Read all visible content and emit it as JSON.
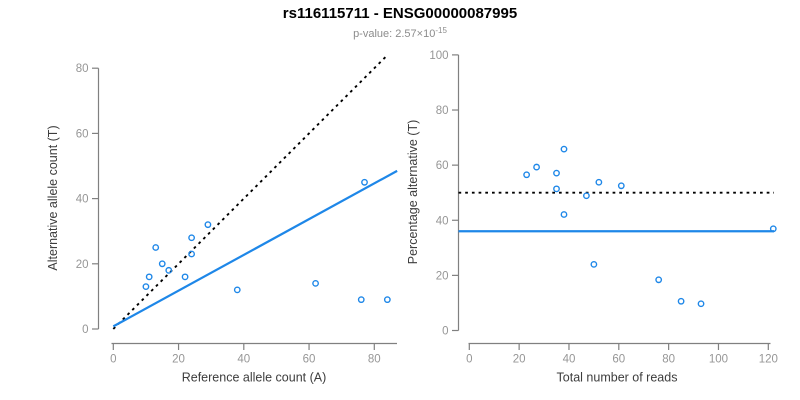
{
  "header": {
    "title": "rs116115711 - ENSG00000087995",
    "pvalue_prefix": "p-value: 2.57",
    "pvalue_times": "×",
    "pvalue_base": "10",
    "pvalue_exponent": "-15"
  },
  "colors": {
    "point_blue": "#1E87E8",
    "line_blue": "#1E87E8",
    "dotted_black": "#000000",
    "axis_gray": "#808080",
    "tick_label_gray": "#969696",
    "axis_title_gray": "#3D3D3D",
    "subtitle_gray": "#8C8C8C",
    "title_black": "#000000"
  },
  "chart_data": [
    {
      "type": "scatter",
      "name": "allele-counts-plot",
      "xlabel": "Reference allele count (A)",
      "ylabel": "Alternative allele count (T)",
      "xlim": [
        0,
        87
      ],
      "ylim": [
        0,
        84
      ],
      "xticks": [
        0,
        20,
        40,
        60,
        80
      ],
      "yticks": [
        0,
        20,
        40,
        60,
        80
      ],
      "grid": false,
      "legend": null,
      "points": [
        [
          10,
          13
        ],
        [
          11,
          16
        ],
        [
          13,
          25
        ],
        [
          15,
          20
        ],
        [
          17,
          18
        ],
        [
          22,
          16
        ],
        [
          24,
          23
        ],
        [
          24,
          28
        ],
        [
          29,
          32
        ],
        [
          38,
          12
        ],
        [
          62,
          14
        ],
        [
          76,
          9
        ],
        [
          77,
          45
        ],
        [
          84,
          9
        ]
      ],
      "lines": [
        {
          "name": "identity-line",
          "style": "dotted",
          "color_key": "dotted_black",
          "x1": 0,
          "y1": 0,
          "x2": 84,
          "y2": 84
        },
        {
          "name": "regression-line",
          "style": "solid",
          "color_key": "line_blue",
          "x1": 0,
          "y1": 0.8,
          "x2": 87,
          "y2": 48.5
        }
      ]
    },
    {
      "type": "scatter",
      "name": "percentage-alternative-plot",
      "xlabel": "Total number of reads",
      "ylabel": "Percentage alternative (T)",
      "xlim": [
        0,
        122
      ],
      "ylim": [
        0,
        100
      ],
      "xticks": [
        0,
        20,
        40,
        60,
        80,
        100,
        120
      ],
      "yticks": [
        0,
        20,
        40,
        60,
        80,
        100
      ],
      "grid": false,
      "legend": null,
      "points": [
        [
          23,
          56.5
        ],
        [
          27,
          59.3
        ],
        [
          35,
          51.4
        ],
        [
          35,
          57.1
        ],
        [
          38,
          42.1
        ],
        [
          38,
          65.8
        ],
        [
          47,
          48.9
        ],
        [
          50,
          24.0
        ],
        [
          52,
          53.8
        ],
        [
          61,
          52.5
        ],
        [
          76,
          18.4
        ],
        [
          85,
          10.6
        ],
        [
          93,
          9.7
        ],
        [
          122,
          36.9
        ]
      ],
      "lines": [
        {
          "name": "expected-50pct-line",
          "style": "dotted",
          "color_key": "dotted_black",
          "hline": 50
        },
        {
          "name": "overall-percentage-line",
          "style": "solid",
          "color_key": "line_blue",
          "hline": 36
        }
      ]
    }
  ]
}
